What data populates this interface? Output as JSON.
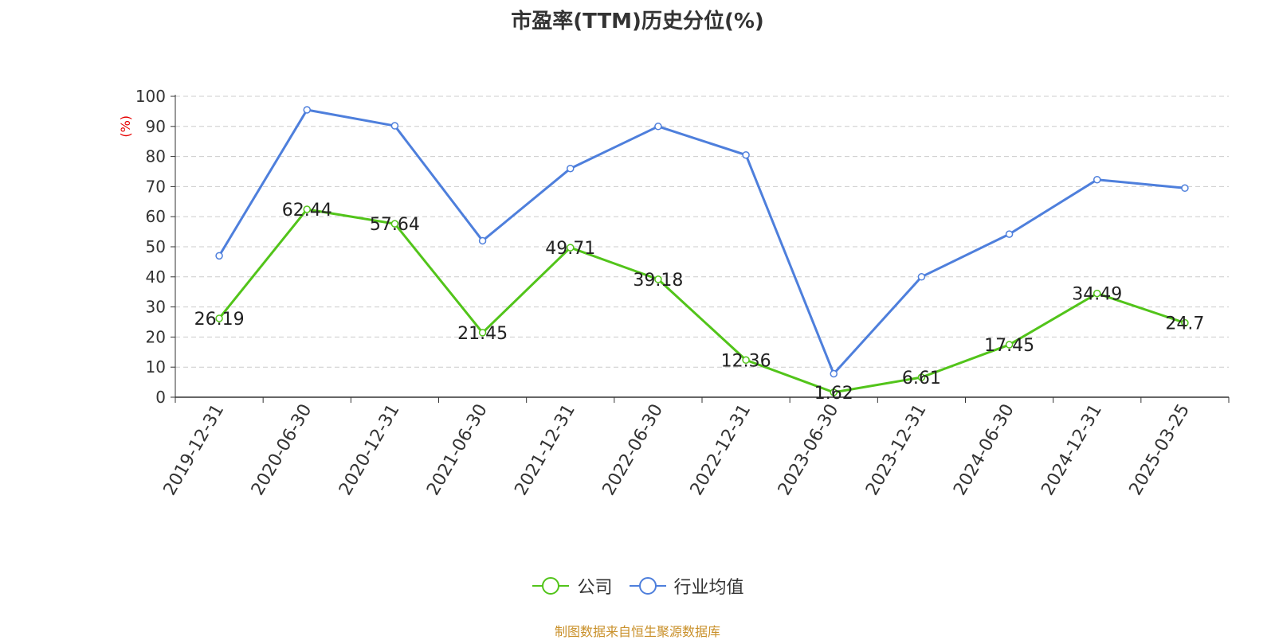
{
  "title": "市盈率(TTM)历史分位(%)",
  "source": "制图数据来自恒生聚源数据库",
  "colors": {
    "company": "#52c41a",
    "industry": "#4e7fdc",
    "source": "#c9902a"
  },
  "chart_data": {
    "type": "line",
    "title": "市盈率(TTM)历史分位(%)",
    "ylabel": "(%)",
    "xlabel": "",
    "ylim": [
      0,
      100
    ],
    "yticks": [
      0,
      10,
      20,
      30,
      40,
      50,
      60,
      70,
      80,
      90,
      100
    ],
    "grid": true,
    "legend_position": "bottom",
    "categories": [
      "2019-12-31",
      "2020-06-30",
      "2020-12-31",
      "2021-06-30",
      "2021-12-31",
      "2022-06-30",
      "2022-12-31",
      "2023-06-30",
      "2023-12-31",
      "2024-06-30",
      "2024-12-31",
      "2025-03-25"
    ],
    "series": [
      {
        "name": "公司",
        "color": "#52c41a",
        "labeled": true,
        "values": [
          26.19,
          62.44,
          57.64,
          21.45,
          49.71,
          39.18,
          12.36,
          1.62,
          6.61,
          17.45,
          34.49,
          24.7
        ]
      },
      {
        "name": "行业均值",
        "color": "#4e7fdc",
        "labeled": false,
        "values": [
          47,
          95.5,
          90.2,
          52,
          76,
          90,
          80.5,
          7.8,
          40,
          54.2,
          72.3,
          69.5
        ]
      }
    ]
  }
}
